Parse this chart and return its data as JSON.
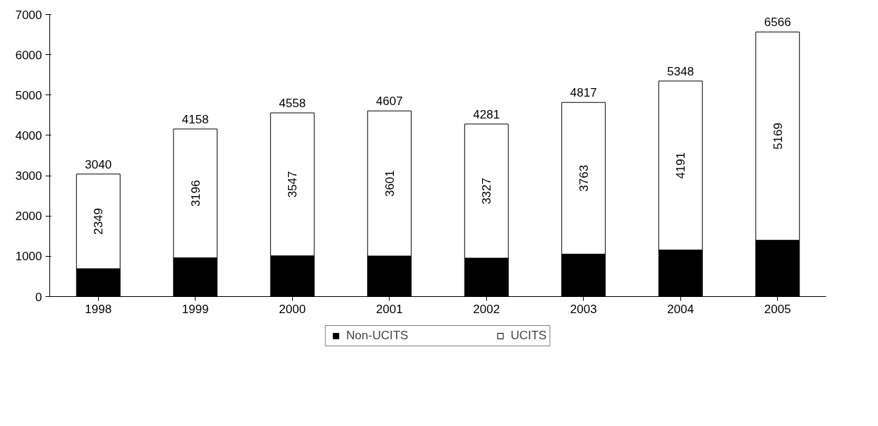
{
  "chart_data": {
    "type": "bar",
    "stacked": true,
    "categories": [
      "1998",
      "1999",
      "2000",
      "2001",
      "2002",
      "2003",
      "2004",
      "2005"
    ],
    "series": [
      {
        "name": "Non-UCITS",
        "color": "#000000",
        "values": [
          691,
          962,
          1011,
          1006,
          954,
          1054,
          1157,
          1397
        ]
      },
      {
        "name": "UCITS",
        "color": "#ffffff",
        "values": [
          2349,
          3196,
          3547,
          3601,
          3327,
          3763,
          4191,
          5169
        ],
        "value_labels": [
          "2349",
          "3196",
          "3547",
          "3601",
          "3327",
          "3763",
          "4191",
          "5169"
        ]
      }
    ],
    "totals": [
      "3040",
      "4158",
      "4558",
      "4607",
      "4281",
      "4817",
      "5348",
      "6566"
    ],
    "ylim": [
      0,
      7000
    ],
    "yticks": [
      0,
      1000,
      2000,
      3000,
      4000,
      5000,
      6000,
      7000
    ],
    "grid": false,
    "legend": "bottom"
  }
}
